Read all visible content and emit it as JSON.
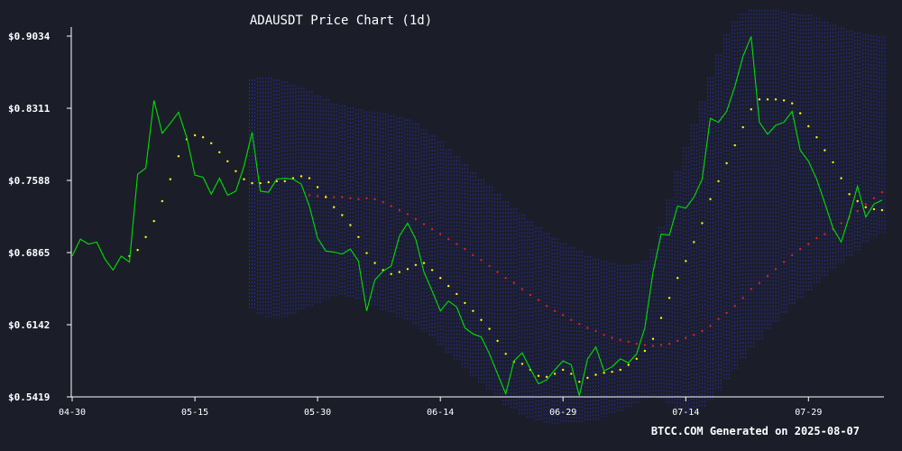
{
  "chart_data": {
    "type": "line",
    "title": "ADAUSDT Price Chart (1d)",
    "footer": "BTCC.COM Generated on 2025-08-07",
    "ylim": [
      0.5419,
      0.9034
    ],
    "y_ticks": [
      0.5419,
      0.6142,
      0.6865,
      0.7588,
      0.8311,
      0.9034
    ],
    "y_tick_labels": [
      "$0.5419",
      "$0.6142",
      "$0.6865",
      "$0.7588",
      "$0.8311",
      "$0.9034"
    ],
    "x_start": "2025-04-30",
    "x_end": "2025-08-07",
    "x_ticks": [
      "2025-04-30",
      "2025-05-15",
      "2025-05-30",
      "2025-06-14",
      "2025-06-29",
      "2025-07-14",
      "2025-07-29"
    ],
    "x_tick_labels": [
      "04-30",
      "05-15",
      "05-30",
      "06-14",
      "06-29",
      "07-14",
      "07-29"
    ],
    "grid": false,
    "colors": {
      "background": "#1b1e29",
      "price": "#00e000",
      "fast_ma": "#ffff00",
      "slow_ma": "#e02020",
      "band": "#2a2a8c"
    },
    "series": [
      {
        "kind": "price",
        "values": [
          0.683,
          0.7,
          0.695,
          0.697,
          0.68,
          0.669,
          0.683,
          0.677,
          0.765,
          0.771,
          0.839,
          0.806,
          0.816,
          0.827,
          0.802,
          0.764,
          0.762,
          0.745,
          0.761,
          0.744,
          0.748,
          0.773,
          0.807,
          0.748,
          0.747,
          0.76,
          0.761,
          0.76,
          0.755,
          0.733,
          0.701,
          0.688,
          0.687,
          0.685,
          0.69,
          0.678,
          0.628,
          0.659,
          0.668,
          0.673,
          0.703,
          0.716,
          0.7,
          0.667,
          0.648,
          0.628,
          0.638,
          0.632,
          0.611,
          0.605,
          0.602,
          0.585,
          0.565,
          0.545,
          0.578,
          0.586,
          0.57,
          0.555,
          0.559,
          0.569,
          0.578,
          0.574,
          0.543,
          0.58,
          0.592,
          0.568,
          0.572,
          0.58,
          0.576,
          0.585,
          0.611,
          0.667,
          0.705,
          0.704,
          0.733,
          0.731,
          0.742,
          0.76,
          0.821,
          0.817,
          0.828,
          0.853,
          0.883,
          0.903,
          0.817,
          0.805,
          0.814,
          0.817,
          0.828,
          0.789,
          0.778,
          0.76,
          0.736,
          0.711,
          0.697,
          0.723,
          0.753,
          0.722,
          0.735,
          0.739
        ]
      },
      {
        "kind": "fast_ma",
        "values": [
          null,
          null,
          null,
          null,
          null,
          null,
          null,
          0.683,
          0.689,
          0.702,
          0.718,
          0.738,
          0.76,
          0.783,
          0.8,
          0.804,
          0.802,
          0.796,
          0.787,
          0.778,
          0.768,
          0.76,
          0.756,
          0.756,
          0.757,
          0.758,
          0.758,
          0.761,
          0.763,
          0.761,
          0.752,
          0.742,
          0.732,
          0.724,
          0.714,
          0.702,
          0.686,
          0.676,
          0.669,
          0.665,
          0.667,
          0.67,
          0.674,
          0.676,
          0.669,
          0.661,
          0.653,
          0.645,
          0.636,
          0.628,
          0.619,
          0.61,
          0.598,
          0.585,
          0.577,
          0.575,
          0.569,
          0.563,
          0.562,
          0.565,
          0.569,
          0.565,
          0.557,
          0.561,
          0.564,
          0.566,
          0.567,
          0.569,
          0.574,
          0.58,
          0.588,
          0.6,
          0.621,
          0.641,
          0.661,
          0.678,
          0.697,
          0.716,
          0.74,
          0.758,
          0.776,
          0.794,
          0.812,
          0.83,
          0.84,
          0.84,
          0.84,
          0.839,
          0.836,
          0.826,
          0.813,
          0.802,
          0.789,
          0.777,
          0.761,
          0.745,
          0.738,
          0.732,
          0.73,
          0.729
        ]
      },
      {
        "kind": "slow_ma",
        "values": [
          null,
          null,
          null,
          null,
          null,
          null,
          null,
          null,
          null,
          null,
          null,
          null,
          null,
          null,
          null,
          null,
          null,
          null,
          null,
          null,
          null,
          null,
          null,
          null,
          null,
          null,
          null,
          null,
          null,
          0.744,
          0.743,
          0.743,
          0.742,
          0.742,
          0.741,
          0.74,
          0.741,
          0.74,
          0.737,
          0.733,
          0.729,
          0.725,
          0.72,
          0.715,
          0.71,
          0.705,
          0.7,
          0.695,
          0.69,
          0.684,
          0.679,
          0.673,
          0.667,
          0.661,
          0.656,
          0.65,
          0.644,
          0.639,
          0.633,
          0.628,
          0.624,
          0.619,
          0.615,
          0.611,
          0.608,
          0.604,
          0.601,
          0.599,
          0.597,
          0.595,
          0.594,
          0.593,
          0.594,
          0.595,
          0.598,
          0.601,
          0.604,
          0.608,
          0.613,
          0.62,
          0.626,
          0.633,
          0.641,
          0.65,
          0.656,
          0.663,
          0.67,
          0.677,
          0.684,
          0.69,
          0.695,
          0.701,
          0.705,
          0.71,
          0.716,
          0.722,
          0.728,
          0.735,
          0.741,
          0.747
        ]
      },
      {
        "kind": "band",
        "lower": [
          null,
          null,
          null,
          null,
          null,
          null,
          null,
          null,
          null,
          null,
          null,
          null,
          null,
          null,
          null,
          null,
          null,
          null,
          null,
          null,
          null,
          null,
          0.631,
          0.625,
          0.622,
          0.621,
          0.622,
          0.625,
          0.628,
          0.632,
          0.636,
          0.64,
          0.643,
          0.643,
          0.642,
          0.64,
          0.637,
          0.633,
          0.629,
          0.625,
          0.622,
          0.618,
          0.613,
          0.607,
          0.601,
          0.594,
          0.586,
          0.579,
          0.571,
          0.563,
          0.556,
          0.549,
          0.541,
          0.534,
          0.529,
          0.524,
          0.52,
          0.518,
          0.516,
          0.515,
          0.515,
          0.515,
          0.515,
          0.517,
          0.519,
          0.522,
          0.525,
          0.528,
          0.532,
          0.536,
          0.54,
          0.542,
          0.54,
          0.534,
          0.529,
          0.526,
          0.527,
          0.531,
          0.539,
          0.548,
          0.56,
          0.57,
          0.58,
          0.59,
          0.598,
          0.609,
          0.617,
          0.625,
          0.633,
          0.64,
          0.648,
          0.655,
          0.662,
          0.669,
          0.676,
          0.682,
          0.689,
          0.696,
          0.701,
          0.705
        ],
        "upper": [
          null,
          null,
          null,
          null,
          null,
          null,
          null,
          null,
          null,
          null,
          null,
          null,
          null,
          null,
          null,
          null,
          null,
          null,
          null,
          null,
          null,
          null,
          0.86,
          0.862,
          0.862,
          0.86,
          0.858,
          0.855,
          0.852,
          0.848,
          0.844,
          0.84,
          0.836,
          0.834,
          0.832,
          0.83,
          0.828,
          0.827,
          0.826,
          0.824,
          0.822,
          0.82,
          0.816,
          0.81,
          0.804,
          0.798,
          0.79,
          0.783,
          0.775,
          0.767,
          0.76,
          0.753,
          0.745,
          0.738,
          0.731,
          0.725,
          0.718,
          0.712,
          0.706,
          0.701,
          0.696,
          0.692,
          0.688,
          0.683,
          0.68,
          0.678,
          0.676,
          0.674,
          0.674,
          0.675,
          0.678,
          0.69,
          0.712,
          0.74,
          0.768,
          0.792,
          0.815,
          0.838,
          0.862,
          0.885,
          0.905,
          0.918,
          0.926,
          0.93,
          0.93,
          0.93,
          0.93,
          0.928,
          0.926,
          0.925,
          0.925,
          0.922,
          0.918,
          0.915,
          0.912,
          0.909,
          0.907,
          0.905,
          0.904,
          0.903
        ]
      }
    ]
  }
}
